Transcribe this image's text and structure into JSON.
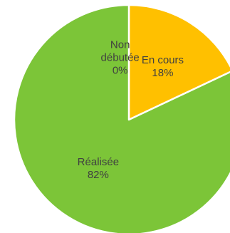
{
  "chart_data": {
    "type": "pie",
    "title": "",
    "slices": [
      {
        "label": "Non débutée",
        "label_lines": [
          "Non",
          "débutée"
        ],
        "value": 0,
        "pct_label": "0%",
        "color": "#4472c4"
      },
      {
        "label": "En cours",
        "label_lines": [
          "En cours"
        ],
        "value": 18,
        "pct_label": "18%",
        "color": "#ffc000"
      },
      {
        "label": "Réalisée",
        "label_lines": [
          "Réalisée"
        ],
        "value": 82,
        "pct_label": "82%",
        "color": "#7cc538"
      }
    ],
    "legend": "none",
    "start_angle_deg": 0,
    "direction": "clockwise",
    "slice_border_color": "#ffffff"
  }
}
